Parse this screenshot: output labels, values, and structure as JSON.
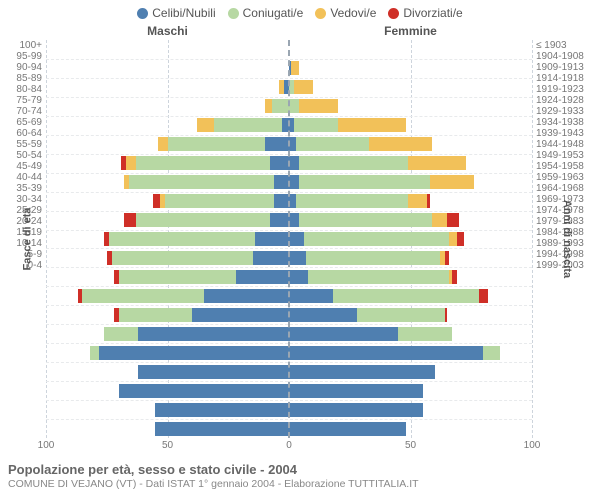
{
  "legend": [
    {
      "label": "Celibi/Nubili",
      "color": "#4f7fb0"
    },
    {
      "label": "Coniugati/e",
      "color": "#b7d8a3"
    },
    {
      "label": "Vedovi/e",
      "color": "#f2c159"
    },
    {
      "label": "Divorziati/e",
      "color": "#cf2f27"
    }
  ],
  "headers": {
    "male": "Maschi",
    "female": "Femmine"
  },
  "axis_left_title": "Fasce di età",
  "axis_right_title": "Anni di nascita",
  "xlim": 100,
  "x_ticks": [
    100,
    50,
    0,
    50,
    100
  ],
  "grid_color": "#cdd4dc",
  "row_grid_color": "#e8eaec",
  "center_color": "#9aa6b2",
  "background": "#ffffff",
  "title": "Popolazione per età, sesso e stato civile - 2004",
  "subtitle": "COMUNE DI VEJANO (VT) - Dati ISTAT 1° gennaio 2004 - Elaborazione TUTTITALIA.IT",
  "rows": [
    {
      "age": "100+",
      "birth": "≤ 1903",
      "m": [
        0,
        0,
        0,
        0
      ],
      "f": [
        0,
        0,
        0,
        0
      ]
    },
    {
      "age": "95-99",
      "birth": "1904-1908",
      "m": [
        0,
        0,
        0,
        0
      ],
      "f": [
        1,
        0,
        3,
        0
      ]
    },
    {
      "age": "90-94",
      "birth": "1909-1913",
      "m": [
        2,
        0,
        2,
        0
      ],
      "f": [
        0,
        2,
        8,
        0
      ]
    },
    {
      "age": "85-89",
      "birth": "1914-1918",
      "m": [
        0,
        7,
        3,
        0
      ],
      "f": [
        0,
        4,
        16,
        0
      ]
    },
    {
      "age": "80-84",
      "birth": "1919-1923",
      "m": [
        3,
        28,
        7,
        0
      ],
      "f": [
        2,
        18,
        28,
        0
      ]
    },
    {
      "age": "75-79",
      "birth": "1924-1928",
      "m": [
        10,
        40,
        4,
        0
      ],
      "f": [
        3,
        30,
        26,
        0
      ]
    },
    {
      "age": "70-74",
      "birth": "1929-1933",
      "m": [
        8,
        55,
        4,
        2
      ],
      "f": [
        4,
        45,
        24,
        0
      ]
    },
    {
      "age": "65-69",
      "birth": "1934-1938",
      "m": [
        6,
        60,
        2,
        0
      ],
      "f": [
        4,
        54,
        18,
        0
      ]
    },
    {
      "age": "60-64",
      "birth": "1939-1943",
      "m": [
        6,
        45,
        2,
        3
      ],
      "f": [
        3,
        46,
        8,
        1
      ]
    },
    {
      "age": "55-59",
      "birth": "1944-1948",
      "m": [
        8,
        55,
        0,
        5
      ],
      "f": [
        4,
        55,
        6,
        5
      ]
    },
    {
      "age": "50-54",
      "birth": "1949-1953",
      "m": [
        14,
        60,
        0,
        2
      ],
      "f": [
        6,
        60,
        3,
        3
      ]
    },
    {
      "age": "45-49",
      "birth": "1954-1958",
      "m": [
        15,
        58,
        0,
        2
      ],
      "f": [
        7,
        55,
        2,
        2
      ]
    },
    {
      "age": "40-44",
      "birth": "1959-1963",
      "m": [
        22,
        48,
        0,
        2
      ],
      "f": [
        8,
        58,
        1,
        2
      ]
    },
    {
      "age": "35-39",
      "birth": "1964-1968",
      "m": [
        35,
        50,
        0,
        2
      ],
      "f": [
        18,
        60,
        0,
        4
      ]
    },
    {
      "age": "30-34",
      "birth": "1969-1973",
      "m": [
        40,
        30,
        0,
        2
      ],
      "f": [
        28,
        36,
        0,
        1
      ]
    },
    {
      "age": "25-29",
      "birth": "1974-1978",
      "m": [
        62,
        14,
        0,
        0
      ],
      "f": [
        45,
        22,
        0,
        0
      ]
    },
    {
      "age": "20-24",
      "birth": "1979-1983",
      "m": [
        78,
        4,
        0,
        0
      ],
      "f": [
        80,
        7,
        0,
        0
      ]
    },
    {
      "age": "15-19",
      "birth": "1984-1988",
      "m": [
        62,
        0,
        0,
        0
      ],
      "f": [
        60,
        0,
        0,
        0
      ]
    },
    {
      "age": "10-14",
      "birth": "1989-1993",
      "m": [
        70,
        0,
        0,
        0
      ],
      "f": [
        55,
        0,
        0,
        0
      ]
    },
    {
      "age": "5-9",
      "birth": "1994-1998",
      "m": [
        55,
        0,
        0,
        0
      ],
      "f": [
        55,
        0,
        0,
        0
      ]
    },
    {
      "age": "0-4",
      "birth": "1999-2003",
      "m": [
        55,
        0,
        0,
        0
      ],
      "f": [
        48,
        0,
        0,
        0
      ]
    }
  ]
}
